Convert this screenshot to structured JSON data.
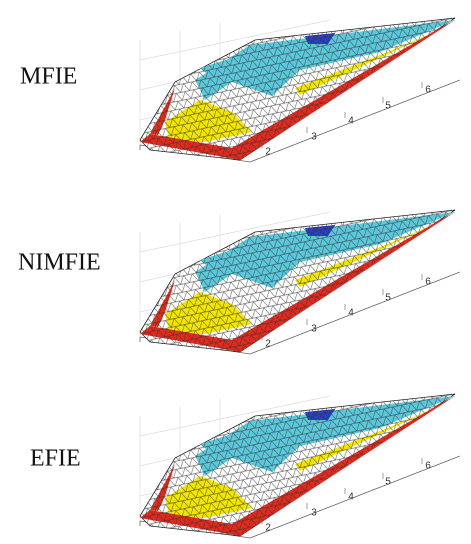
{
  "panels": [
    {
      "label": "MFIE",
      "ticks": [
        2,
        3,
        4,
        5,
        6
      ]
    },
    {
      "label": "NIMFIE",
      "ticks": [
        2,
        3,
        4,
        5,
        6
      ]
    },
    {
      "label": "EFIE",
      "ticks": [
        2,
        3,
        4,
        5,
        6
      ]
    }
  ]
}
